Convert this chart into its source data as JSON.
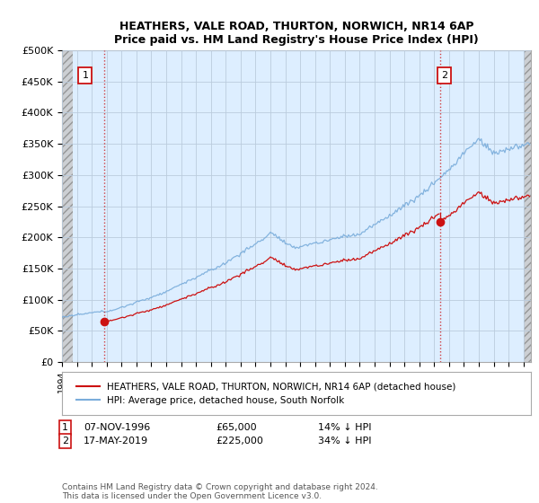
{
  "title1": "HEATHERS, VALE ROAD, THURTON, NORWICH, NR14 6AP",
  "title2": "Price paid vs. HM Land Registry's House Price Index (HPI)",
  "ylabel_ticks": [
    "£0",
    "£50K",
    "£100K",
    "£150K",
    "£200K",
    "£250K",
    "£300K",
    "£350K",
    "£400K",
    "£450K",
    "£500K"
  ],
  "ytick_values": [
    0,
    50000,
    100000,
    150000,
    200000,
    250000,
    300000,
    350000,
    400000,
    450000,
    500000
  ],
  "ylim": [
    0,
    500000
  ],
  "xlim_start": 1994.0,
  "xlim_end": 2025.5,
  "purchase1_x": 1996.85,
  "purchase1_y": 65000,
  "purchase2_x": 2019.38,
  "purchase2_y": 225000,
  "hpi_color": "#7aaddb",
  "price_color": "#cc1111",
  "dot_color": "#cc1111",
  "plot_bg_color": "#ddeeff",
  "hatch_bg_color": "#cccccc",
  "grid_color": "#bbccdd",
  "legend_label1": "HEATHERS, VALE ROAD, THURTON, NORWICH, NR14 6AP (detached house)",
  "legend_label2": "HPI: Average price, detached house, South Norfolk",
  "footer": "Contains HM Land Registry data © Crown copyright and database right 2024.\nThis data is licensed under the Open Government Licence v3.0."
}
